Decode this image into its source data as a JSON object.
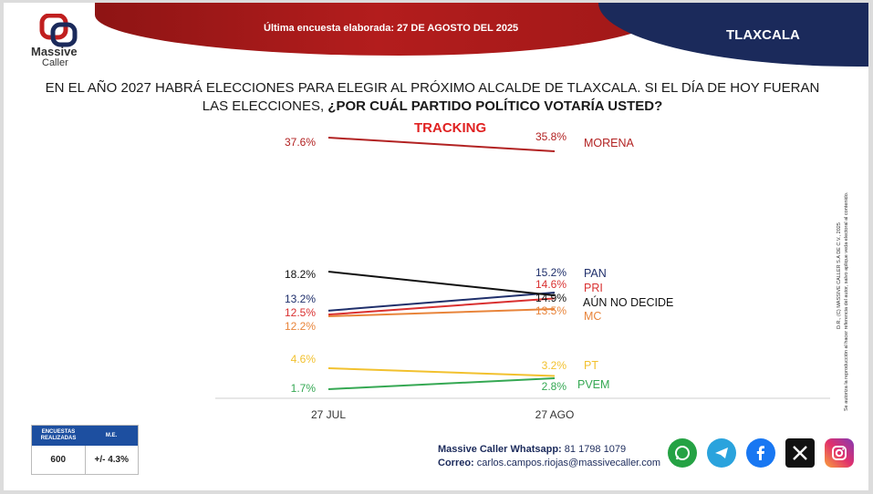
{
  "brand": {
    "name_line1": "Massive",
    "name_line2": "Caller"
  },
  "header": {
    "banner_text": "Última encuesta elaborada: 27 DE AGOSTO DEL 2025",
    "region": "TLAXCALA"
  },
  "question": {
    "line1": "EN EL AÑO 2027 HABRÁ ELECCIONES PARA ELEGIR AL PRÓXIMO ALCALDE DE TLAXCALA. SI EL DÍA DE HOY FUERAN",
    "line2_plain": "LAS ELECCIONES, ",
    "line2_bold": "¿POR CUÁL PARTIDO POLÍTICO VOTARÍA USTED?"
  },
  "chart_data": {
    "type": "line",
    "title": "TRACKING",
    "x": [
      "27 JUL",
      "27 AGO"
    ],
    "ylim": [
      0,
      40
    ],
    "grid": false,
    "legend": "labels at line ends (right)",
    "series": [
      {
        "name": "MORENA",
        "values": [
          37.6,
          35.8
        ],
        "labels": [
          "37.6%",
          "35.8%"
        ],
        "color": "#b22222"
      },
      {
        "name": "PAN",
        "values": [
          13.2,
          15.2
        ],
        "labels": [
          "13.2%",
          "15.2%"
        ],
        "color": "#1f2f6b"
      },
      {
        "name": "PRI",
        "values": [
          12.5,
          14.6
        ],
        "labels": [
          "12.5%",
          "14.6%"
        ],
        "color": "#d93030"
      },
      {
        "name": "AÚN NO DECIDE",
        "values": [
          18.2,
          14.9
        ],
        "labels": [
          "18.2%",
          "14.9%"
        ],
        "color": "#111111"
      },
      {
        "name": "MC",
        "values": [
          12.2,
          13.5
        ],
        "labels": [
          "12.2%",
          "13.5%"
        ],
        "color": "#e8843a"
      },
      {
        "name": "PT",
        "values": [
          4.6,
          3.2
        ],
        "labels": [
          "4.6%",
          "3.2%"
        ],
        "color": "#f2c12e"
      },
      {
        "name": "PVEM",
        "values": [
          1.7,
          2.8
        ],
        "labels": [
          "1.7%",
          "2.8%"
        ],
        "color": "#35a853"
      }
    ]
  },
  "side_note": {
    "line1": "D.R., (C) MASSIVE CALLER S.A DE C.V., 2025",
    "line2": "Se autoriza la reproducción al hacer referencia del autor, salvo aplique veda electoral al contenido."
  },
  "survey_table": {
    "col1_header": "ENCUESTAS REALIZADAS",
    "col2_header": "M.E.",
    "col1_value": "600",
    "col2_value": "+/- 4.3%"
  },
  "contact": {
    "whatsapp_label": "Massive Caller Whatsapp:",
    "whatsapp_number": "81 1798 1079",
    "email_label": "Correo:",
    "email": "carlos.campos.riojas@massivecaller.com"
  },
  "social_icons": [
    "whatsapp-icon",
    "telegram-icon",
    "facebook-icon",
    "x-icon",
    "instagram-icon"
  ]
}
